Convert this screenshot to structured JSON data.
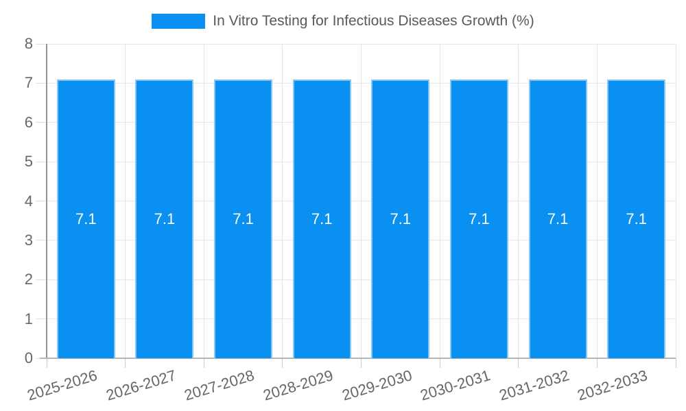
{
  "chart_data": {
    "type": "bar",
    "title": "In Vitro Testing for Infectious Diseases Growth (%)",
    "legend_label": "In Vitro Testing for Infectious Diseases Growth (%)",
    "legend_position": "top",
    "categories": [
      "2025-2026",
      "2026-2027",
      "2027-2028",
      "2028-2029",
      "2029-2030",
      "2030-2031",
      "2031-2032",
      "2032-2033"
    ],
    "series": [
      {
        "name": "In Vitro Testing for Infectious Diseases Growth (%)",
        "values": [
          7.1,
          7.1,
          7.1,
          7.1,
          7.1,
          7.1,
          7.1,
          7.1
        ],
        "data_labels": [
          "7.1",
          "7.1",
          "7.1",
          "7.1",
          "7.1",
          "7.1",
          "7.1",
          "7.1"
        ]
      }
    ],
    "xlabel": "",
    "ylabel": "",
    "ylim": [
      0,
      8
    ],
    "yticks": [
      0,
      1,
      2,
      3,
      4,
      5,
      6,
      7,
      8
    ],
    "grid": true,
    "colors": {
      "bar": "#0a90f1",
      "bar_label": "#ffffff",
      "grid": "#e6e6e6",
      "tick_label": "#666666",
      "legend_text": "#58595b",
      "background": "#ffffff"
    }
  }
}
